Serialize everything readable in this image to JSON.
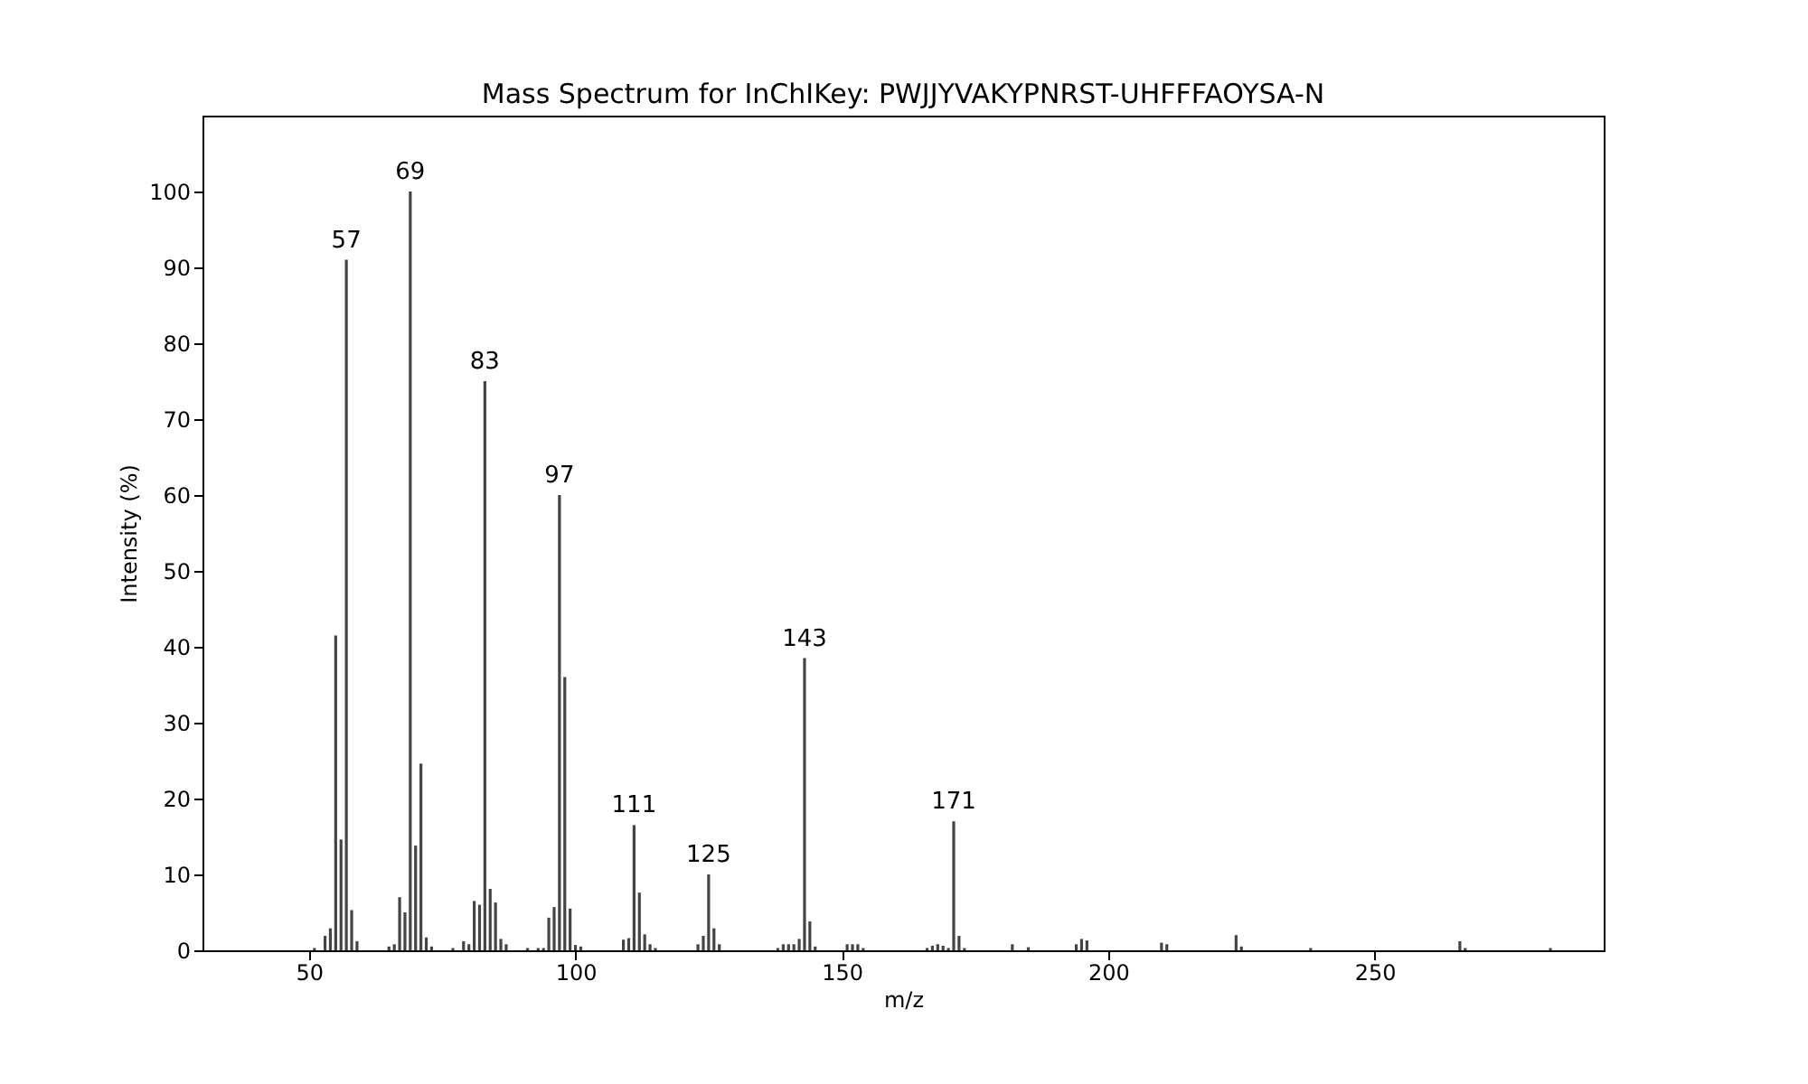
{
  "chart_data": {
    "type": "bar",
    "title": "Mass Spectrum for InChIKey: PWJJYVAKYPNRST-UHFFFAOYSA-N",
    "xlabel": "m/z",
    "ylabel": "Intensity (%)",
    "x": [
      51,
      53,
      54,
      55,
      56,
      57,
      58,
      59,
      65,
      66,
      67,
      68,
      69,
      70,
      71,
      72,
      73,
      77,
      79,
      80,
      81,
      82,
      83,
      84,
      85,
      86,
      87,
      91,
      93,
      94,
      95,
      96,
      97,
      98,
      99,
      100,
      101,
      109,
      110,
      111,
      112,
      113,
      114,
      115,
      123,
      124,
      125,
      126,
      127,
      138,
      139,
      140,
      141,
      142,
      143,
      144,
      145,
      151,
      152,
      153,
      154,
      166,
      167,
      168,
      169,
      170,
      171,
      172,
      173,
      182,
      185,
      194,
      195,
      196,
      210,
      211,
      224,
      225,
      238,
      266,
      267,
      283
    ],
    "series": [
      {
        "color": "#444444",
        "values": [
          0.3,
          1.9,
          2.9,
          41.5,
          14.6,
          91,
          5.3,
          1.2,
          0.5,
          0.8,
          7,
          5,
          100,
          13.8,
          24.6,
          1.7,
          0.5,
          0.3,
          1.2,
          0.8,
          6.5,
          6,
          75,
          8.1,
          6.3,
          1.5,
          0.8,
          0.3,
          0.3,
          0.3,
          4.3,
          5.7,
          60,
          36,
          5.5,
          0.7,
          0.5,
          1.4,
          1.6,
          16.5,
          7.6,
          2.1,
          0.8,
          0.3,
          0.8,
          1.9,
          10,
          2.9,
          0.8,
          0.3,
          0.8,
          0.8,
          0.8,
          1.5,
          38.5,
          3.8,
          0.5,
          0.8,
          0.8,
          0.8,
          0.3,
          0.3,
          0.6,
          0.8,
          0.6,
          0.3,
          17,
          1.9,
          0.3,
          0.8,
          0.4,
          0.8,
          1.5,
          1.3,
          1,
          0.8,
          2,
          0.5,
          0.3,
          1.2,
          0.3,
          0.3
        ]
      }
    ],
    "annotations": [
      {
        "text": "57",
        "x": 57,
        "y": 91
      },
      {
        "text": "69",
        "x": 69,
        "y": 100
      },
      {
        "text": "83",
        "x": 83,
        "y": 75
      },
      {
        "text": "97",
        "x": 97,
        "y": 60
      },
      {
        "text": "111",
        "x": 111,
        "y": 16.5
      },
      {
        "text": "125",
        "x": 125,
        "y": 10
      },
      {
        "text": "143",
        "x": 143,
        "y": 38.5
      },
      {
        "text": "171",
        "x": 171,
        "y": 17
      }
    ],
    "xlim": [
      30,
      293
    ],
    "ylim": [
      0,
      110
    ],
    "xticks": [
      50,
      100,
      150,
      200,
      250
    ],
    "yticks": [
      0,
      10,
      20,
      30,
      40,
      50,
      60,
      70,
      80,
      90,
      100
    ],
    "grid": false,
    "legend": false
  }
}
